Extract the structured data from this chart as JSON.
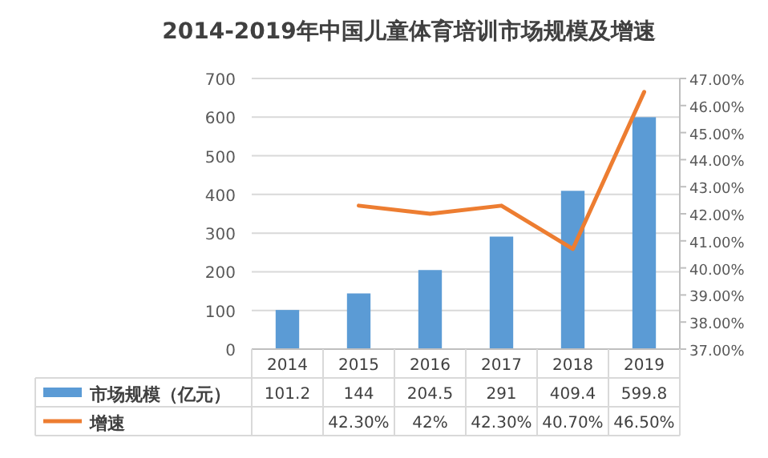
{
  "chart_data": {
    "type": "bar",
    "title": "2014-2019年中国儿童体育培训市场规模及增速",
    "categories": [
      "2014",
      "2015",
      "2016",
      "2017",
      "2018",
      "2019"
    ],
    "series": [
      {
        "name": "市场规模（亿元）",
        "color": "#5b9bd5",
        "values": [
          101.2,
          144,
          204.5,
          291,
          409.4,
          599.8
        ],
        "value_labels": [
          "101.2",
          "144",
          "204.5",
          "291",
          "409.4",
          "599.8"
        ]
      },
      {
        "name": "增速",
        "type": "line",
        "axis": "y2",
        "color": "#ed7d31",
        "values": [
          null,
          42.3,
          42,
          42.3,
          40.7,
          46.5
        ],
        "value_labels": [
          null,
          "42.30%",
          "42%",
          "42.30%",
          "40.70%",
          "46.50%"
        ]
      }
    ],
    "ylim": [
      0,
      700
    ],
    "yticks": [
      0,
      100,
      200,
      300,
      400,
      500,
      600,
      700
    ],
    "y2lim": [
      37,
      47
    ],
    "y2ticks": [
      {
        "value": 37,
        "label": "37.00%"
      },
      {
        "value": 38,
        "label": "38.00%"
      },
      {
        "value": 39,
        "label": "39.00%"
      },
      {
        "value": 40,
        "label": "40.00%"
      },
      {
        "value": 41,
        "label": "41.00%"
      },
      {
        "value": 42,
        "label": "42.00%"
      },
      {
        "value": 43,
        "label": "43.00%"
      },
      {
        "value": 44,
        "label": "44.00%"
      },
      {
        "value": 45,
        "label": "45.00%"
      },
      {
        "value": 46,
        "label": "46.00%"
      },
      {
        "value": 47,
        "label": "47.00%"
      }
    ],
    "grid": "y",
    "legend": "bottom"
  }
}
